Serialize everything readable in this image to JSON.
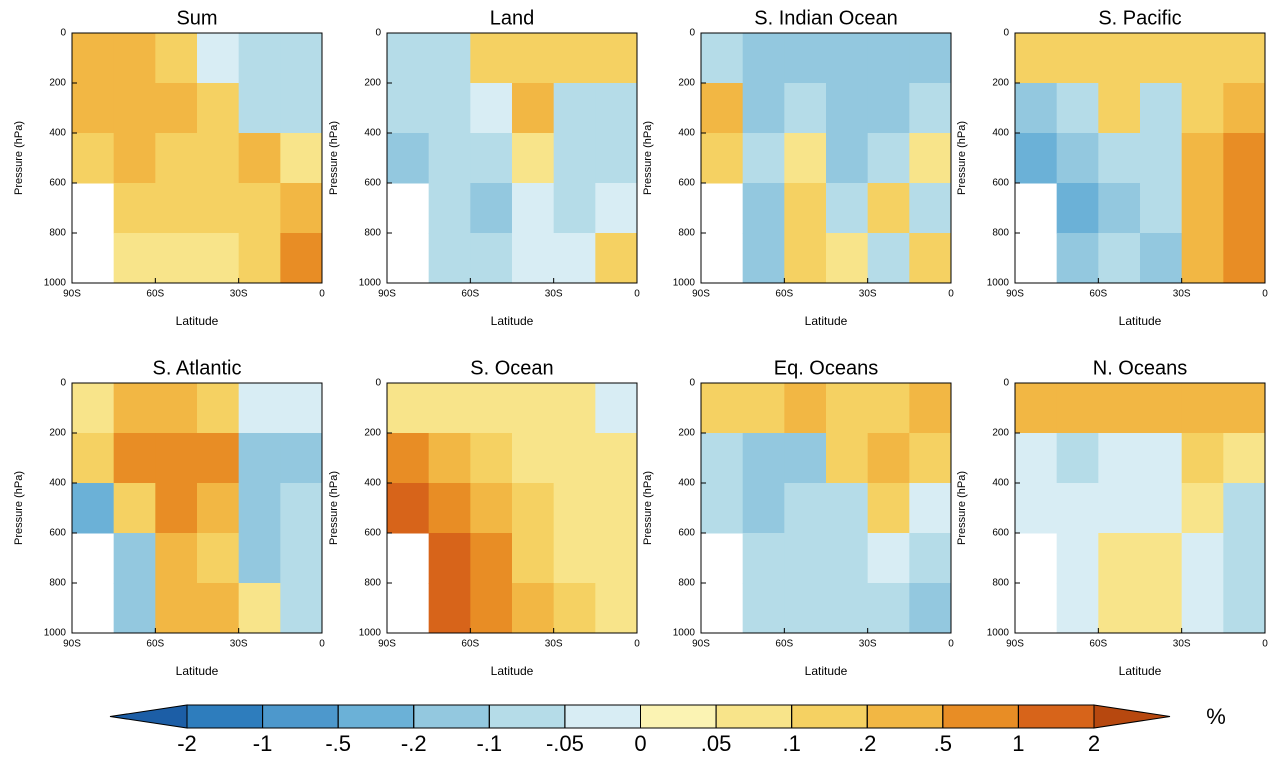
{
  "chart_data": [
    {
      "type": "heatmap",
      "title": "Sum",
      "xlabel": "Latitude",
      "ylabel": "Pressure (hPa)",
      "x": [
        -82.5,
        -67.5,
        -52.5,
        -37.5,
        -22.5,
        -7.5
      ],
      "y": [
        100,
        300,
        500,
        700,
        900
      ],
      "z": [
        [
          0.2,
          0.2,
          0.1,
          -0.05,
          -0.1,
          -0.1
        ],
        [
          0.2,
          0.2,
          0.2,
          0.1,
          -0.1,
          -0.1
        ],
        [
          0.1,
          0.2,
          0.1,
          0.1,
          0.2,
          0.05
        ],
        [
          null,
          0.1,
          0.1,
          0.1,
          0.1,
          0.2
        ],
        [
          null,
          0.05,
          0.05,
          0.05,
          0.1,
          0.5
        ]
      ],
      "xlim": [
        -90,
        0
      ],
      "ylim": [
        1000,
        0
      ],
      "xticks": [
        {
          "value": -90,
          "label": "90S"
        },
        {
          "value": -60,
          "label": "60S"
        },
        {
          "value": -30,
          "label": "30S"
        },
        0
      ],
      "yticks": [
        0,
        200,
        400,
        600,
        800,
        1000
      ]
    },
    {
      "type": "heatmap",
      "title": "Land",
      "xlabel": "Latitude",
      "ylabel": "Pressure (hPa)",
      "x": [
        -82.5,
        -67.5,
        -52.5,
        -37.5,
        -22.5,
        -7.5
      ],
      "y": [
        100,
        300,
        500,
        700,
        900
      ],
      "z": [
        [
          -0.1,
          -0.1,
          0.1,
          0.1,
          0.1,
          0.1
        ],
        [
          -0.1,
          -0.1,
          -0.05,
          0.2,
          -0.1,
          -0.1
        ],
        [
          -0.2,
          -0.1,
          -0.1,
          0.05,
          -0.1,
          -0.1
        ],
        [
          null,
          -0.1,
          -0.2,
          -0.05,
          -0.1,
          -0.05
        ],
        [
          null,
          -0.1,
          -0.1,
          -0.05,
          -0.05,
          0.1
        ]
      ],
      "xlim": [
        -90,
        0
      ],
      "ylim": [
        1000,
        0
      ],
      "xticks": [
        {
          "value": -90,
          "label": "90S"
        },
        {
          "value": -60,
          "label": "60S"
        },
        {
          "value": -30,
          "label": "30S"
        },
        0
      ],
      "yticks": [
        0,
        200,
        400,
        600,
        800,
        1000
      ]
    },
    {
      "type": "heatmap",
      "title": "S. Indian Ocean",
      "xlabel": "Latitude",
      "ylabel": "Pressure (hPa)",
      "x": [
        -82.5,
        -67.5,
        -52.5,
        -37.5,
        -22.5,
        -7.5
      ],
      "y": [
        100,
        300,
        500,
        700,
        900
      ],
      "z": [
        [
          -0.1,
          -0.2,
          -0.2,
          -0.2,
          -0.2,
          -0.2
        ],
        [
          0.2,
          -0.2,
          -0.1,
          -0.2,
          -0.2,
          -0.1
        ],
        [
          0.1,
          -0.1,
          0.05,
          -0.2,
          -0.1,
          0.05
        ],
        [
          null,
          -0.2,
          0.1,
          -0.1,
          0.1,
          -0.1
        ],
        [
          null,
          -0.2,
          0.1,
          0.05,
          -0.1,
          0.1
        ]
      ],
      "xlim": [
        -90,
        0
      ],
      "ylim": [
        1000,
        0
      ],
      "xticks": [
        {
          "value": -90,
          "label": "90S"
        },
        {
          "value": -60,
          "label": "60S"
        },
        {
          "value": -30,
          "label": "30S"
        },
        0
      ],
      "yticks": [
        0,
        200,
        400,
        600,
        800,
        1000
      ]
    },
    {
      "type": "heatmap",
      "title": "S. Pacific",
      "xlabel": "Latitude",
      "ylabel": "Pressure (hPa)",
      "x": [
        -82.5,
        -67.5,
        -52.5,
        -37.5,
        -22.5,
        -7.5
      ],
      "y": [
        100,
        300,
        500,
        700,
        900
      ],
      "z": [
        [
          0.1,
          0.1,
          0.1,
          0.1,
          0.1,
          0.1
        ],
        [
          -0.2,
          -0.1,
          0.1,
          -0.1,
          0.1,
          0.2
        ],
        [
          -0.5,
          -0.2,
          -0.1,
          -0.1,
          0.2,
          0.5
        ],
        [
          null,
          -0.5,
          -0.2,
          -0.1,
          0.2,
          0.5
        ],
        [
          null,
          -0.2,
          -0.1,
          -0.2,
          0.2,
          0.5
        ]
      ],
      "xlim": [
        -90,
        0
      ],
      "ylim": [
        1000,
        0
      ],
      "xticks": [
        {
          "value": -90,
          "label": "90S"
        },
        {
          "value": -60,
          "label": "60S"
        },
        {
          "value": -30,
          "label": "30S"
        },
        0
      ],
      "yticks": [
        0,
        200,
        400,
        600,
        800,
        1000
      ]
    },
    {
      "type": "heatmap",
      "title": "S. Atlantic",
      "xlabel": "Latitude",
      "ylabel": "Pressure (hPa)",
      "x": [
        -82.5,
        -67.5,
        -52.5,
        -37.5,
        -22.5,
        -7.5
      ],
      "y": [
        100,
        300,
        500,
        700,
        900
      ],
      "z": [
        [
          0.05,
          0.2,
          0.2,
          0.1,
          -0.05,
          -0.05
        ],
        [
          0.1,
          0.5,
          0.5,
          0.5,
          -0.2,
          -0.2
        ],
        [
          -0.5,
          0.1,
          0.5,
          0.2,
          -0.2,
          -0.1
        ],
        [
          null,
          -0.2,
          0.2,
          0.1,
          -0.2,
          -0.1
        ],
        [
          null,
          -0.2,
          0.2,
          0.2,
          0.05,
          -0.1
        ]
      ],
      "xlim": [
        -90,
        0
      ],
      "ylim": [
        1000,
        0
      ],
      "xticks": [
        {
          "value": -90,
          "label": "90S"
        },
        {
          "value": -60,
          "label": "60S"
        },
        {
          "value": -30,
          "label": "30S"
        },
        0
      ],
      "yticks": [
        0,
        200,
        400,
        600,
        800,
        1000
      ]
    },
    {
      "type": "heatmap",
      "title": "S. Ocean",
      "xlabel": "Latitude",
      "ylabel": "Pressure (hPa)",
      "x": [
        -82.5,
        -67.5,
        -52.5,
        -37.5,
        -22.5,
        -7.5
      ],
      "y": [
        100,
        300,
        500,
        700,
        900
      ],
      "z": [
        [
          0.05,
          0.05,
          0.05,
          0.05,
          0.05,
          -0.05
        ],
        [
          0.5,
          0.2,
          0.1,
          0.05,
          0.05,
          0.05
        ],
        [
          1,
          0.5,
          0.2,
          0.1,
          0.05,
          0.05
        ],
        [
          null,
          1,
          0.5,
          0.1,
          0.05,
          0.05
        ],
        [
          null,
          1,
          0.5,
          0.2,
          0.1,
          0.05
        ]
      ],
      "xlim": [
        -90,
        0
      ],
      "ylim": [
        1000,
        0
      ],
      "xticks": [
        {
          "value": -90,
          "label": "90S"
        },
        {
          "value": -60,
          "label": "60S"
        },
        {
          "value": -30,
          "label": "30S"
        },
        0
      ],
      "yticks": [
        0,
        200,
        400,
        600,
        800,
        1000
      ]
    },
    {
      "type": "heatmap",
      "title": "Eq. Oceans",
      "xlabel": "Latitude",
      "ylabel": "Pressure (hPa)",
      "x": [
        -82.5,
        -67.5,
        -52.5,
        -37.5,
        -22.5,
        -7.5
      ],
      "y": [
        100,
        300,
        500,
        700,
        900
      ],
      "z": [
        [
          0.1,
          0.1,
          0.2,
          0.1,
          0.1,
          0.2
        ],
        [
          -0.1,
          -0.2,
          -0.2,
          0.1,
          0.2,
          0.1
        ],
        [
          -0.1,
          -0.2,
          -0.1,
          -0.1,
          0.1,
          -0.05
        ],
        [
          null,
          -0.1,
          -0.1,
          -0.1,
          -0.05,
          -0.1
        ],
        [
          null,
          -0.1,
          -0.1,
          -0.1,
          -0.1,
          -0.2
        ]
      ],
      "xlim": [
        -90,
        0
      ],
      "ylim": [
        1000,
        0
      ],
      "xticks": [
        {
          "value": -90,
          "label": "90S"
        },
        {
          "value": -60,
          "label": "60S"
        },
        {
          "value": -30,
          "label": "30S"
        },
        0
      ],
      "yticks": [
        0,
        200,
        400,
        600,
        800,
        1000
      ]
    },
    {
      "type": "heatmap",
      "title": "N. Oceans",
      "xlabel": "Latitude",
      "ylabel": "Pressure (hPa)",
      "x": [
        -82.5,
        -67.5,
        -52.5,
        -37.5,
        -22.5,
        -7.5
      ],
      "y": [
        100,
        300,
        500,
        700,
        900
      ],
      "z": [
        [
          0.2,
          0.2,
          0.2,
          0.2,
          0.2,
          0.2
        ],
        [
          -0.05,
          -0.1,
          -0.05,
          -0.05,
          0.1,
          0.05
        ],
        [
          -0.05,
          -0.05,
          -0.05,
          -0.05,
          0.05,
          -0.1
        ],
        [
          null,
          -0.05,
          0.05,
          0.05,
          -0.05,
          -0.1
        ],
        [
          null,
          -0.05,
          0.05,
          0.05,
          -0.05,
          -0.1
        ]
      ],
      "xlim": [
        -90,
        0
      ],
      "ylim": [
        1000,
        0
      ],
      "xticks": [
        {
          "value": -90,
          "label": "90S"
        },
        {
          "value": -60,
          "label": "60S"
        },
        {
          "value": -30,
          "label": "30S"
        },
        0
      ],
      "yticks": [
        0,
        200,
        400,
        600,
        800,
        1000
      ]
    }
  ],
  "colorbar": {
    "unit": "%",
    "levels": [
      -2,
      -1,
      {
        "value": -0.5,
        "label": "-.5"
      },
      {
        "value": -0.2,
        "label": "-.2"
      },
      {
        "value": -0.1,
        "label": "-.1"
      },
      {
        "value": -0.05,
        "label": "-.05"
      },
      0,
      {
        "value": 0.05,
        "label": ".05"
      },
      {
        "value": 0.1,
        "label": ".1"
      },
      {
        "value": 0.2,
        "label": ".2"
      },
      {
        "value": 0.5,
        "label": ".5"
      },
      1,
      2
    ],
    "colors": [
      "#1c5ea6",
      "#2e7dbd",
      "#4d98cc",
      "#6bb1d7",
      "#93c8df",
      "#b5dce8",
      "#d8edf4",
      "#fbf3b3",
      "#f8e48a",
      "#f5d162",
      "#f2b744",
      "#e88d25",
      "#d7641a",
      "#b7480f"
    ]
  }
}
